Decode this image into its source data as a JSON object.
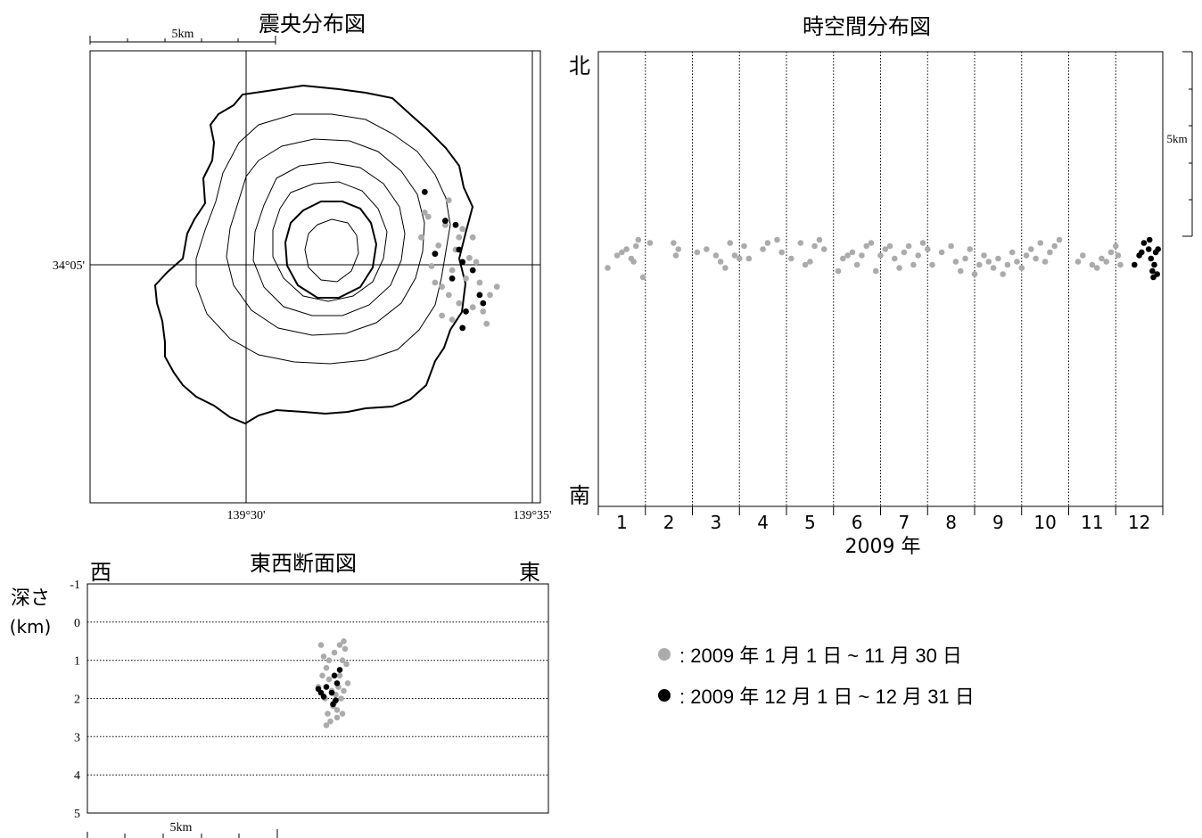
{
  "colors": {
    "past": "#ababab",
    "current": "#000000",
    "frame": "#000000",
    "contour": "#000000"
  },
  "epicenter_map": {
    "title": "震央分布図",
    "scale_label": "5km",
    "lat_label": "34°05'",
    "lon_labels": [
      "139°30'",
      "139°35'"
    ]
  },
  "spacetime": {
    "title": "時空間分布図",
    "north_label": "北",
    "south_label": "南",
    "scale_label": "5km",
    "year_label": "2009 年",
    "months": [
      "1",
      "2",
      "3",
      "4",
      "5",
      "6",
      "7",
      "8",
      "9",
      "10",
      "11",
      "12"
    ]
  },
  "cross_section": {
    "title": "東西断面図",
    "west_label": "西",
    "east_label": "東",
    "depth_label_1": "深さ",
    "depth_label_2": "(km)",
    "depth_ticks": [
      "-1",
      "0",
      "1",
      "2",
      "3",
      "4",
      "5"
    ],
    "scale_label": "5km"
  },
  "legend": {
    "past": ": 2009 年 1 月 1 日 ~ 11 月 30 日",
    "current": ": 2009 年 12 月 1 日 ~ 12 月 31 日"
  },
  "chart_data": [
    {
      "type": "scatter",
      "title": "震央分布図",
      "x_axis": "longitude",
      "y_axis": "latitude",
      "tick_labels": [
        "34°05'",
        "139°30'",
        "139°35'"
      ],
      "scale": "5km",
      "series": [
        {
          "name": ": 2009 年 1 月 1 日 ~ 11 月 30 日",
          "points": [
            [
              139.553,
              34.095
            ],
            [
              139.559,
              34.099
            ],
            [
              139.563,
              34.092
            ],
            [
              139.556,
              34.088
            ],
            [
              139.565,
              34.085
            ],
            [
              139.551,
              34.09
            ],
            [
              139.56,
              34.082
            ],
            [
              139.568,
              34.079
            ],
            [
              139.557,
              34.078
            ],
            [
              139.562,
              34.074
            ],
            [
              139.566,
              34.09
            ],
            [
              139.554,
              34.083
            ],
            [
              139.561,
              34.087
            ],
            [
              139.569,
              34.072
            ],
            [
              139.571,
              34.076
            ],
            [
              139.558,
              34.093
            ],
            [
              139.564,
              34.08
            ],
            [
              139.552,
              34.096
            ],
            [
              139.567,
              34.084
            ],
            [
              139.56,
              34.07
            ],
            [
              139.563,
              34.068
            ],
            [
              139.57,
              34.069
            ],
            [
              139.555,
              34.079
            ],
            [
              139.566,
              34.073
            ],
            [
              139.559,
              34.076
            ],
            [
              139.562,
              34.09
            ],
            [
              139.573,
              34.078
            ],
            [
              139.557,
              34.071
            ]
          ]
        },
        {
          "name": ": 2009 年 12 月 1 日 ~ 12 月 31 日",
          "points": [
            [
              139.552,
              34.101
            ],
            [
              139.558,
              34.094
            ],
            [
              139.561,
              34.093
            ],
            [
              139.555,
              34.086
            ],
            [
              139.563,
              34.084
            ],
            [
              139.566,
              34.082
            ],
            [
              139.56,
              34.08
            ],
            [
              139.568,
              34.076
            ],
            [
              139.564,
              34.072
            ],
            [
              139.563,
              34.068
            ],
            [
              139.569,
              34.074
            ],
            [
              139.562,
              34.087
            ]
          ]
        }
      ]
    },
    {
      "type": "scatter",
      "title": "時空間分布図",
      "x_axis": "month (2009)",
      "y_axis": "north-south position (km)",
      "x_ticks": [
        "1",
        "2",
        "3",
        "4",
        "5",
        "6",
        "7",
        "8",
        "9",
        "10",
        "11",
        "12"
      ],
      "y_range_labels": [
        "南",
        "北"
      ],
      "series": [
        {
          "name": ": 2009 年 1 月 1 日 ~ 11 月 30 日",
          "points": [
            [
              1.2,
              0.5
            ],
            [
              1.4,
              0.9
            ],
            [
              1.5,
              1.0
            ],
            [
              1.6,
              1.1
            ],
            [
              1.7,
              0.8
            ],
            [
              1.75,
              0.7
            ],
            [
              1.8,
              1.2
            ],
            [
              1.85,
              1.4
            ],
            [
              1.95,
              0.2
            ],
            [
              2.1,
              1.3
            ],
            [
              2.6,
              1.3
            ],
            [
              2.65,
              0.9
            ],
            [
              2.7,
              1.1
            ],
            [
              3.1,
              1.0
            ],
            [
              3.3,
              1.1
            ],
            [
              3.5,
              0.9
            ],
            [
              3.6,
              0.7
            ],
            [
              3.7,
              0.5
            ],
            [
              3.8,
              1.3
            ],
            [
              3.9,
              0.9
            ],
            [
              4.0,
              0.8
            ],
            [
              4.1,
              1.2
            ],
            [
              4.2,
              0.8
            ],
            [
              4.5,
              1.1
            ],
            [
              4.6,
              1.3
            ],
            [
              4.8,
              1.4
            ],
            [
              4.9,
              1.0
            ],
            [
              5.1,
              0.8
            ],
            [
              5.3,
              1.3
            ],
            [
              5.4,
              0.6
            ],
            [
              5.5,
              0.7
            ],
            [
              5.6,
              1.2
            ],
            [
              5.7,
              1.4
            ],
            [
              5.8,
              1.1
            ],
            [
              6.1,
              0.4
            ],
            [
              6.2,
              0.8
            ],
            [
              6.3,
              0.9
            ],
            [
              6.4,
              1.0
            ],
            [
              6.5,
              0.6
            ],
            [
              6.6,
              0.9
            ],
            [
              6.7,
              1.2
            ],
            [
              6.8,
              1.3
            ],
            [
              6.9,
              0.4
            ],
            [
              7.0,
              0.9
            ],
            [
              7.1,
              1.1
            ],
            [
              7.2,
              1.2
            ],
            [
              7.3,
              0.8
            ],
            [
              7.4,
              0.5
            ],
            [
              7.5,
              1.0
            ],
            [
              7.6,
              1.2
            ],
            [
              7.7,
              0.6
            ],
            [
              7.8,
              0.9
            ],
            [
              7.9,
              1.3
            ],
            [
              8.0,
              1.1
            ],
            [
              8.1,
              0.6
            ],
            [
              8.3,
              1.0
            ],
            [
              8.5,
              1.2
            ],
            [
              8.6,
              0.7
            ],
            [
              8.7,
              0.4
            ],
            [
              8.8,
              0.8
            ],
            [
              8.9,
              1.1
            ],
            [
              9.0,
              0.3
            ],
            [
              9.1,
              0.6
            ],
            [
              9.2,
              0.9
            ],
            [
              9.3,
              0.7
            ],
            [
              9.4,
              0.5
            ],
            [
              9.5,
              0.8
            ],
            [
              9.6,
              0.3
            ],
            [
              9.7,
              0.6
            ],
            [
              9.8,
              1.0
            ],
            [
              9.9,
              0.7
            ],
            [
              10.0,
              0.5
            ],
            [
              10.1,
              0.9
            ],
            [
              10.2,
              1.1
            ],
            [
              10.3,
              0.8
            ],
            [
              10.4,
              1.3
            ],
            [
              10.5,
              0.7
            ],
            [
              10.6,
              1.0
            ],
            [
              10.7,
              1.2
            ],
            [
              10.8,
              1.4
            ],
            [
              11.2,
              0.7
            ],
            [
              11.3,
              0.9
            ],
            [
              11.5,
              0.6
            ],
            [
              11.6,
              0.5
            ],
            [
              11.7,
              0.8
            ],
            [
              11.8,
              0.7
            ],
            [
              11.9,
              1.0
            ],
            [
              12.0,
              1.2
            ],
            [
              12.05,
              0.9
            ],
            [
              12.1,
              0.6
            ]
          ]
        },
        {
          "name": ": 2009 年 12 月 1 日 ~ 12 月 31 日",
          "points": [
            [
              12.4,
              0.6
            ],
            [
              12.5,
              0.9
            ],
            [
              12.55,
              1.0
            ],
            [
              12.6,
              1.3
            ],
            [
              12.7,
              1.1
            ],
            [
              12.72,
              1.4
            ],
            [
              12.75,
              0.8
            ],
            [
              12.78,
              0.4
            ],
            [
              12.8,
              0.2
            ],
            [
              12.82,
              0.6
            ],
            [
              12.85,
              1.0
            ],
            [
              12.88,
              0.3
            ],
            [
              12.9,
              1.1
            ]
          ]
        }
      ]
    },
    {
      "type": "scatter",
      "title": "東西断面図",
      "x_axis": "west-east position",
      "y_axis": "深さ (km)",
      "y_ticks": [
        "-1",
        "0",
        "1",
        "2",
        "3",
        "4",
        "5"
      ],
      "ylim": [
        5,
        -1
      ],
      "scale": "5km",
      "series": [
        {
          "name": ": 2009 年 1 月 1 日 ~ 11 月 30 日",
          "points": [
            [
              -0.5,
              0.6
            ],
            [
              -0.4,
              0.9
            ],
            [
              -0.3,
              1.2
            ],
            [
              -0.2,
              1.5
            ],
            [
              -0.1,
              1.8
            ],
            [
              0.0,
              2.1
            ],
            [
              0.1,
              2.3
            ],
            [
              0.2,
              1.4
            ],
            [
              0.3,
              1.0
            ],
            [
              0.35,
              0.5
            ],
            [
              0.4,
              0.7
            ],
            [
              0.45,
              1.1
            ],
            [
              0.5,
              1.6
            ],
            [
              -0.6,
              1.7
            ],
            [
              -0.35,
              2.0
            ],
            [
              -0.25,
              2.4
            ],
            [
              -0.15,
              2.6
            ],
            [
              -0.05,
              2.2
            ],
            [
              0.05,
              1.9
            ],
            [
              0.15,
              1.7
            ],
            [
              0.25,
              2.0
            ],
            [
              0.35,
              1.8
            ],
            [
              -0.45,
              1.4
            ],
            [
              -0.2,
              1.0
            ],
            [
              0.0,
              0.8
            ],
            [
              0.2,
              0.6
            ],
            [
              -0.3,
              2.7
            ],
            [
              0.1,
              2.5
            ],
            [
              0.3,
              2.4
            ]
          ]
        },
        {
          "name": ": 2009 年 12 月 1 日 ~ 12 月 31 日",
          "points": [
            [
              -0.6,
              1.75
            ],
            [
              -0.4,
              1.95
            ],
            [
              -0.3,
              1.7
            ],
            [
              -0.1,
              1.85
            ],
            [
              0.0,
              1.4
            ],
            [
              0.1,
              1.6
            ],
            [
              0.2,
              1.25
            ],
            [
              0.05,
              2.05
            ],
            [
              -0.05,
              2.15
            ],
            [
              -0.5,
              1.85
            ]
          ]
        }
      ]
    }
  ]
}
